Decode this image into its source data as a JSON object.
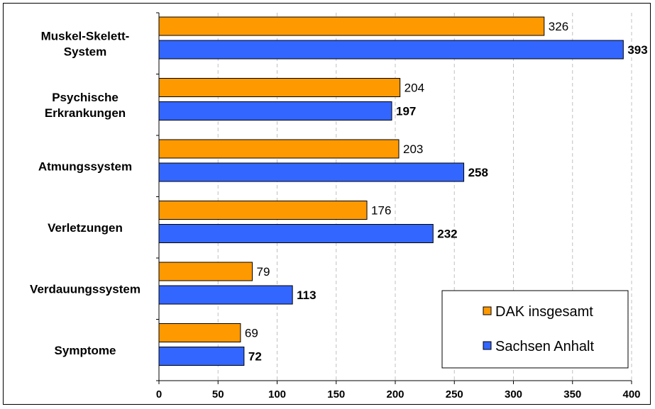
{
  "chart_data": {
    "type": "bar",
    "orientation": "horizontal",
    "categories": [
      "Muskel-Skelett-System",
      "Psychische Erkrankungen",
      "Atmungssystem",
      "Verletzungen",
      "Verdauungssystem",
      "Symptome"
    ],
    "category_label_lines": [
      [
        "Muskel-Skelett-",
        "System"
      ],
      [
        "Psychische",
        "Erkrankungen"
      ],
      [
        "Atmungssystem"
      ],
      [
        "Verletzungen"
      ],
      [
        "Verdauungssystem"
      ],
      [
        "Symptome"
      ]
    ],
    "series": [
      {
        "name": "DAK insgesamt",
        "color": "#FF9900",
        "values": [
          326,
          204,
          203,
          176,
          79,
          69
        ]
      },
      {
        "name": "Sachsen Anhalt",
        "color": "#3366FF",
        "values": [
          393,
          197,
          258,
          232,
          113,
          72
        ]
      }
    ],
    "xlim": [
      0,
      400
    ],
    "x_ticks": [
      0,
      50,
      100,
      150,
      200,
      250,
      300,
      350,
      400
    ],
    "grid": "vertical dashed",
    "legend_position": "bottom-right"
  }
}
